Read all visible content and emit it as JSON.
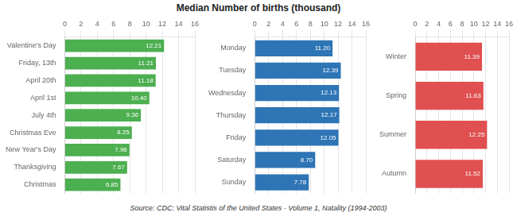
{
  "title": "Median Number of births (thousand)",
  "annotations": [
    "Source: CDC: Vital Statistis of the United States - Volume 1, Natality (1994-2003)"
  ],
  "chart_data": [
    {
      "type": "bar",
      "orientation": "horizontal",
      "categories": [
        "Valentine's Day",
        "Friday, 13th",
        "April 20th",
        "April 1st",
        "July 4th",
        "Christmas Eve",
        "New Year's Day",
        "Thanksgiving",
        "Christmas"
      ],
      "values": [
        12.21,
        11.21,
        11.18,
        10.4,
        9.36,
        8.25,
        7.96,
        7.67,
        6.85
      ],
      "value_labels": [
        "12.21",
        "11.21",
        "11.18",
        "10.40",
        "9.36",
        "8.25",
        "7.96",
        "7.67",
        "6.85"
      ],
      "color": "#4caf50",
      "data_labels": true,
      "xlim": [
        0,
        16
      ],
      "xticks": [
        0,
        2,
        4,
        6,
        8,
        10,
        12,
        14,
        16
      ],
      "grid": true
    },
    {
      "type": "bar",
      "orientation": "horizontal",
      "categories": [
        "Monday",
        "Tuesday",
        "Wednesday",
        "Thursday",
        "Friday",
        "Saturday",
        "Sunday"
      ],
      "values": [
        11.2,
        12.39,
        12.13,
        12.17,
        12.05,
        8.7,
        7.78
      ],
      "value_labels": [
        "11.20",
        "12.39",
        "12.13",
        "12.17",
        "12.05",
        "8.70",
        "7.78"
      ],
      "color": "#2e75b6",
      "data_labels": true,
      "xlim": [
        0,
        16
      ],
      "xticks": [
        0,
        2,
        4,
        6,
        8,
        10,
        12,
        14,
        16
      ],
      "grid": true
    },
    {
      "type": "bar",
      "orientation": "horizontal",
      "categories": [
        "Winter",
        "Spring",
        "Summer",
        "Autumn"
      ],
      "values": [
        11.39,
        11.63,
        12.25,
        11.52
      ],
      "value_labels": [
        "11.39",
        "11.63",
        "12.25",
        "11.52"
      ],
      "color": "#e05050",
      "data_labels": true,
      "xlim": [
        0,
        16
      ],
      "xticks": [
        0,
        2,
        4,
        6,
        8,
        10,
        12,
        14,
        16
      ],
      "grid": true
    }
  ]
}
